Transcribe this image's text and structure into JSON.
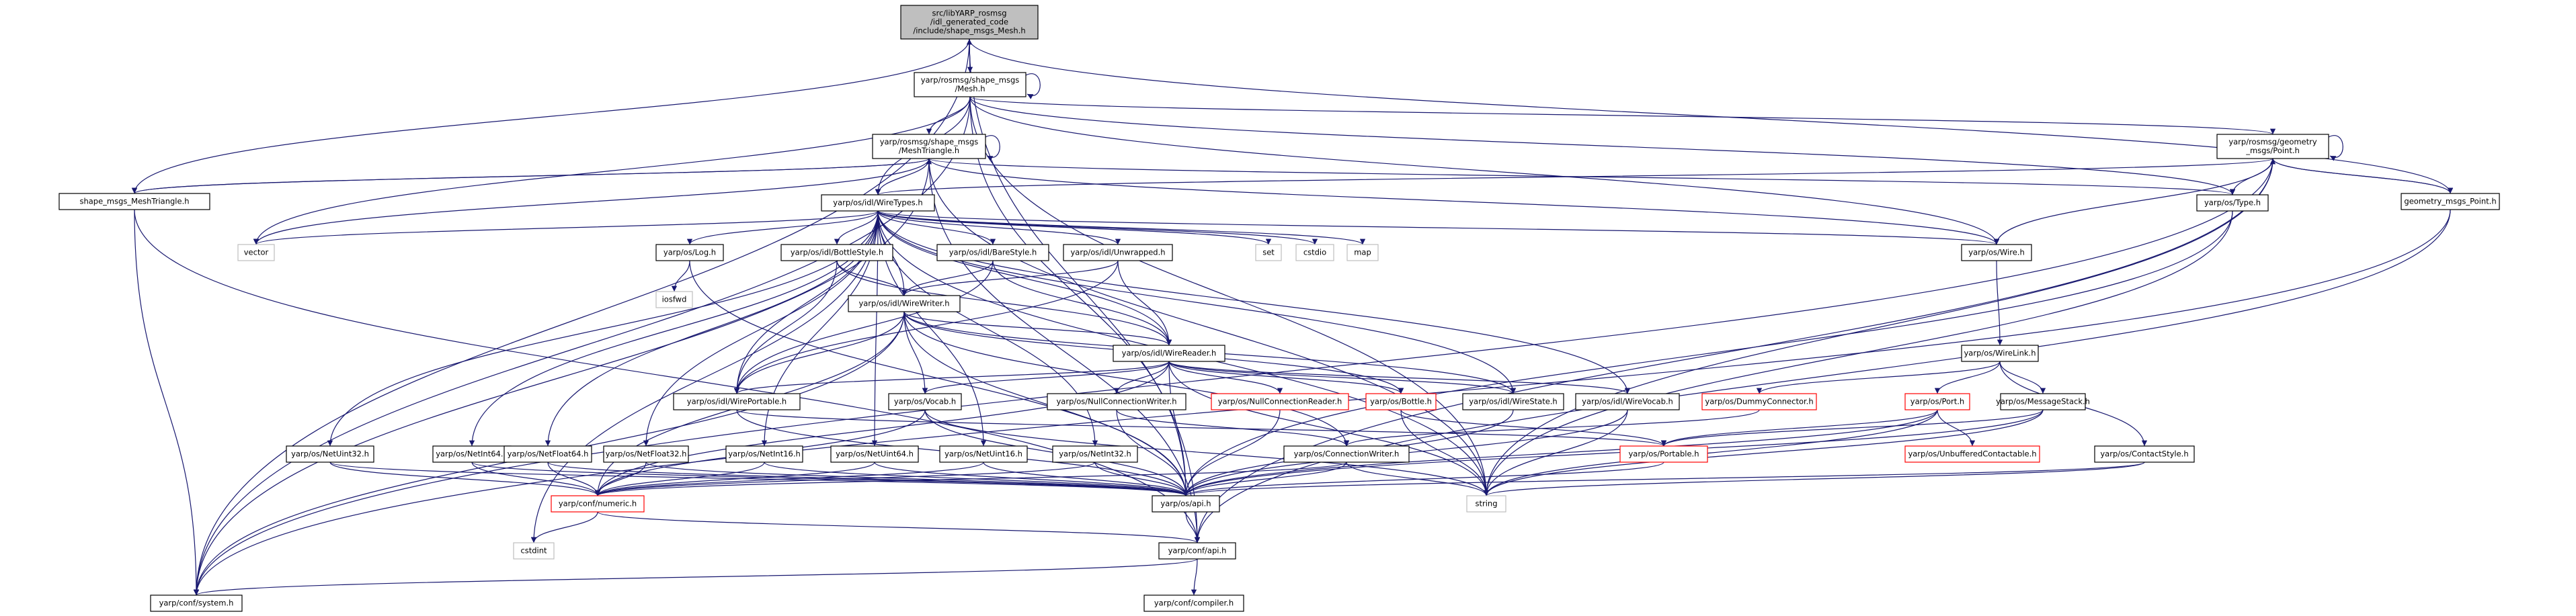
{
  "colors": {
    "edge": "#191970",
    "node_border": "#000000",
    "node_fill": "#ffffff",
    "root_fill": "#bfbfbf",
    "root_border": "#000000",
    "missing_border": "#ff0000",
    "plain_border": "#bfbfbf"
  },
  "nodes": [
    {
      "id": "root",
      "lines": [
        "src/libYARP_rosmsg",
        "/idl_generated_code",
        "/include/shape_msgs_Mesh.h"
      ],
      "style": "root"
    },
    {
      "id": "mesh",
      "lines": [
        "yarp/rosmsg/shape_msgs",
        "/Mesh.h"
      ],
      "style": "normal"
    },
    {
      "id": "meshtri",
      "lines": [
        "yarp/rosmsg/shape_msgs",
        "/MeshTriangle.h"
      ],
      "style": "normal"
    },
    {
      "id": "geopoint",
      "lines": [
        "yarp/rosmsg/geometry",
        "_msgs/Point.h"
      ],
      "style": "normal"
    },
    {
      "id": "smt",
      "lines": [
        "shape_msgs_MeshTriangle.h"
      ],
      "style": "normal"
    },
    {
      "id": "gmp",
      "lines": [
        "geometry_msgs_Point.h"
      ],
      "style": "normal"
    },
    {
      "id": "wiretypes",
      "lines": [
        "yarp/os/idl/WireTypes.h"
      ],
      "style": "normal"
    },
    {
      "id": "typeh",
      "lines": [
        "yarp/os/Type.h"
      ],
      "style": "normal"
    },
    {
      "id": "vector",
      "lines": [
        "vector"
      ],
      "style": "plain"
    },
    {
      "id": "set",
      "lines": [
        "set"
      ],
      "style": "plain"
    },
    {
      "id": "cstdio",
      "lines": [
        "cstdio"
      ],
      "style": "plain"
    },
    {
      "id": "map",
      "lines": [
        "map"
      ],
      "style": "plain"
    },
    {
      "id": "wire",
      "lines": [
        "yarp/os/Wire.h"
      ],
      "style": "normal"
    },
    {
      "id": "log",
      "lines": [
        "yarp/os/Log.h"
      ],
      "style": "normal"
    },
    {
      "id": "iosfwd",
      "lines": [
        "iosfwd"
      ],
      "style": "plain"
    },
    {
      "id": "bottlestyle",
      "lines": [
        "yarp/os/idl/BottleStyle.h"
      ],
      "style": "normal"
    },
    {
      "id": "barestyle",
      "lines": [
        "yarp/os/idl/BareStyle.h"
      ],
      "style": "normal"
    },
    {
      "id": "unwrapped",
      "lines": [
        "yarp/os/idl/Unwrapped.h"
      ],
      "style": "normal"
    },
    {
      "id": "wirewriter",
      "lines": [
        "yarp/os/idl/WireWriter.h"
      ],
      "style": "normal"
    },
    {
      "id": "wirereader",
      "lines": [
        "yarp/os/idl/WireReader.h"
      ],
      "style": "normal"
    },
    {
      "id": "wirelink",
      "lines": [
        "yarp/os/WireLink.h"
      ],
      "style": "normal"
    },
    {
      "id": "dummyconn",
      "lines": [
        "yarp/os/DummyConnector.h"
      ],
      "style": "missing"
    },
    {
      "id": "port",
      "lines": [
        "yarp/os/Port.h"
      ],
      "style": "missing"
    },
    {
      "id": "msgstack",
      "lines": [
        "yarp/os/MessageStack.h"
      ],
      "style": "normal"
    },
    {
      "id": "wireportable",
      "lines": [
        "yarp/os/idl/WirePortable.h"
      ],
      "style": "normal"
    },
    {
      "id": "vocab",
      "lines": [
        "yarp/os/Vocab.h"
      ],
      "style": "normal"
    },
    {
      "id": "nullconnwriter",
      "lines": [
        "yarp/os/NullConnectionWriter.h"
      ],
      "style": "normal"
    },
    {
      "id": "nullconnreader",
      "lines": [
        "yarp/os/NullConnectionReader.h"
      ],
      "style": "missing"
    },
    {
      "id": "bottle",
      "lines": [
        "yarp/os/Bottle.h"
      ],
      "style": "missing"
    },
    {
      "id": "wirestate",
      "lines": [
        "yarp/os/idl/WireState.h"
      ],
      "style": "normal"
    },
    {
      "id": "wirevocab",
      "lines": [
        "yarp/os/idl/WireVocab.h"
      ],
      "style": "normal"
    },
    {
      "id": "portable",
      "lines": [
        "yarp/os/Portable.h"
      ],
      "style": "missing"
    },
    {
      "id": "unbuffered",
      "lines": [
        "yarp/os/UnbufferedContactable.h"
      ],
      "style": "missing"
    },
    {
      "id": "contactstyle",
      "lines": [
        "yarp/os/ContactStyle.h"
      ],
      "style": "normal"
    },
    {
      "id": "netuint32",
      "lines": [
        "yarp/os/NetUint32.h"
      ],
      "style": "normal"
    },
    {
      "id": "netint64",
      "lines": [
        "yarp/os/NetInt64.h"
      ],
      "style": "normal"
    },
    {
      "id": "netfloat64",
      "lines": [
        "yarp/os/NetFloat64.h"
      ],
      "style": "normal"
    },
    {
      "id": "netfloat32",
      "lines": [
        "yarp/os/NetFloat32.h"
      ],
      "style": "normal"
    },
    {
      "id": "netint16",
      "lines": [
        "yarp/os/NetInt16.h"
      ],
      "style": "normal"
    },
    {
      "id": "netuint64",
      "lines": [
        "yarp/os/NetUint64.h"
      ],
      "style": "normal"
    },
    {
      "id": "netuint16",
      "lines": [
        "yarp/os/NetUint16.h"
      ],
      "style": "normal"
    },
    {
      "id": "netint32",
      "lines": [
        "yarp/os/NetInt32.h"
      ],
      "style": "normal"
    },
    {
      "id": "connwriter",
      "lines": [
        "yarp/os/ConnectionWriter.h"
      ],
      "style": "normal"
    },
    {
      "id": "string",
      "lines": [
        "string"
      ],
      "style": "plain"
    },
    {
      "id": "numeric",
      "lines": [
        "yarp/conf/numeric.h"
      ],
      "style": "missing"
    },
    {
      "id": "apih",
      "lines": [
        "yarp/os/api.h"
      ],
      "style": "normal"
    },
    {
      "id": "cstdint",
      "lines": [
        "cstdint"
      ],
      "style": "plain"
    },
    {
      "id": "confapi",
      "lines": [
        "yarp/conf/api.h"
      ],
      "style": "normal"
    },
    {
      "id": "system",
      "lines": [
        "yarp/conf/system.h"
      ],
      "style": "normal"
    },
    {
      "id": "compiler",
      "lines": [
        "yarp/conf/compiler.h"
      ],
      "style": "normal"
    }
  ],
  "edges": [
    [
      "root",
      "mesh"
    ],
    [
      "root",
      "smt"
    ],
    [
      "root",
      "system"
    ],
    [
      "root",
      "confapi"
    ],
    [
      "root",
      "gmp"
    ],
    [
      "mesh",
      "mesh"
    ],
    [
      "mesh",
      "meshtri"
    ],
    [
      "mesh",
      "geopoint"
    ],
    [
      "mesh",
      "wiretypes"
    ],
    [
      "mesh",
      "typeh"
    ],
    [
      "mesh",
      "vector"
    ],
    [
      "mesh",
      "wire"
    ],
    [
      "mesh",
      "system"
    ],
    [
      "mesh",
      "apih"
    ],
    [
      "mesh",
      "string"
    ],
    [
      "mesh",
      "root"
    ],
    [
      "meshtri",
      "meshtri"
    ],
    [
      "meshtri",
      "wiretypes"
    ],
    [
      "meshtri",
      "typeh"
    ],
    [
      "meshtri",
      "vector"
    ],
    [
      "meshtri",
      "wire"
    ],
    [
      "meshtri",
      "system"
    ],
    [
      "meshtri",
      "smt"
    ],
    [
      "meshtri",
      "string"
    ],
    [
      "meshtri",
      "confapi"
    ],
    [
      "geopoint",
      "geopoint"
    ],
    [
      "geopoint",
      "wiretypes"
    ],
    [
      "geopoint",
      "typeh"
    ],
    [
      "geopoint",
      "wire"
    ],
    [
      "geopoint",
      "gmp"
    ],
    [
      "geopoint",
      "string"
    ],
    [
      "geopoint",
      "confapi"
    ],
    [
      "geopoint",
      "system"
    ],
    [
      "smt",
      "meshtri"
    ],
    [
      "smt",
      "system"
    ],
    [
      "smt",
      "confapi"
    ],
    [
      "gmp",
      "geopoint"
    ],
    [
      "gmp",
      "system"
    ],
    [
      "gmp",
      "confapi"
    ],
    [
      "wiretypes",
      "vector"
    ],
    [
      "wiretypes",
      "set"
    ],
    [
      "wiretypes",
      "cstdio"
    ],
    [
      "wiretypes",
      "map"
    ],
    [
      "wiretypes",
      "wire"
    ],
    [
      "wiretypes",
      "log"
    ],
    [
      "wiretypes",
      "bottlestyle"
    ],
    [
      "wiretypes",
      "barestyle"
    ],
    [
      "wiretypes",
      "unwrapped"
    ],
    [
      "wiretypes",
      "wirewriter"
    ],
    [
      "wiretypes",
      "wirereader"
    ],
    [
      "wiretypes",
      "wireportable"
    ],
    [
      "wiretypes",
      "wirestate"
    ],
    [
      "wiretypes",
      "wirevocab"
    ],
    [
      "wiretypes",
      "netuint32"
    ],
    [
      "wiretypes",
      "netint64"
    ],
    [
      "wiretypes",
      "netfloat64"
    ],
    [
      "wiretypes",
      "netfloat32"
    ],
    [
      "wiretypes",
      "netint16"
    ],
    [
      "wiretypes",
      "netuint64"
    ],
    [
      "wiretypes",
      "netuint16"
    ],
    [
      "wiretypes",
      "netint32"
    ],
    [
      "wiretypes",
      "cstdint"
    ],
    [
      "wiretypes",
      "string"
    ],
    [
      "typeh",
      "apih"
    ],
    [
      "typeh",
      "string"
    ],
    [
      "wire",
      "wirelink"
    ],
    [
      "log",
      "iosfwd"
    ],
    [
      "log",
      "apih"
    ],
    [
      "bottlestyle",
      "wireportable"
    ],
    [
      "bottlestyle",
      "wirewriter"
    ],
    [
      "bottlestyle",
      "wirereader"
    ],
    [
      "barestyle",
      "wireportable"
    ],
    [
      "barestyle",
      "wirewriter"
    ],
    [
      "barestyle",
      "wirereader"
    ],
    [
      "unwrapped",
      "wireportable"
    ],
    [
      "unwrapped",
      "wirewriter"
    ],
    [
      "unwrapped",
      "wirereader"
    ],
    [
      "wirewriter",
      "wirereader"
    ],
    [
      "wirewriter",
      "wireportable"
    ],
    [
      "wirewriter",
      "vocab"
    ],
    [
      "wirewriter",
      "bottle"
    ],
    [
      "wirewriter",
      "wirestate"
    ],
    [
      "wirewriter",
      "numeric"
    ],
    [
      "wirewriter",
      "apih"
    ],
    [
      "wirewriter",
      "connwriter"
    ],
    [
      "wirewriter",
      "system"
    ],
    [
      "wirereader",
      "wireportable"
    ],
    [
      "wirereader",
      "vocab"
    ],
    [
      "wirereader",
      "nullconnwriter"
    ],
    [
      "wirereader",
      "nullconnreader"
    ],
    [
      "wirereader",
      "bottle"
    ],
    [
      "wirereader",
      "wirestate"
    ],
    [
      "wirereader",
      "wirevocab"
    ],
    [
      "wirereader",
      "numeric"
    ],
    [
      "wirereader",
      "apih"
    ],
    [
      "wirereader",
      "string"
    ],
    [
      "wirelink",
      "dummyconn"
    ],
    [
      "wirelink",
      "port"
    ],
    [
      "wirelink",
      "msgstack"
    ],
    [
      "wirelink",
      "contactstyle"
    ],
    [
      "dummyconn",
      "connwriter"
    ],
    [
      "port",
      "unbuffered"
    ],
    [
      "port",
      "portable"
    ],
    [
      "port",
      "apih"
    ],
    [
      "port",
      "string"
    ],
    [
      "msgstack",
      "portable"
    ],
    [
      "msgstack",
      "apih"
    ],
    [
      "msgstack",
      "string"
    ],
    [
      "contactstyle",
      "apih"
    ],
    [
      "contactstyle",
      "string"
    ],
    [
      "wireportable",
      "portable"
    ],
    [
      "wireportable",
      "apih"
    ],
    [
      "vocab",
      "apih"
    ],
    [
      "vocab",
      "string"
    ],
    [
      "vocab",
      "numeric"
    ],
    [
      "nullconnwriter",
      "connwriter"
    ],
    [
      "nullconnwriter",
      "apih"
    ],
    [
      "nullconnreader",
      "apih"
    ],
    [
      "bottle",
      "portable"
    ],
    [
      "bottle",
      "string"
    ],
    [
      "wirestate",
      "apih"
    ],
    [
      "wirevocab",
      "apih"
    ],
    [
      "wirevocab",
      "string"
    ],
    [
      "portable",
      "apih"
    ],
    [
      "netuint32",
      "numeric"
    ],
    [
      "netuint32",
      "apih"
    ],
    [
      "netint64",
      "numeric"
    ],
    [
      "netint64",
      "apih"
    ],
    [
      "netfloat64",
      "numeric"
    ],
    [
      "netfloat64",
      "apih"
    ],
    [
      "netfloat32",
      "numeric"
    ],
    [
      "netfloat32",
      "apih"
    ],
    [
      "netint16",
      "numeric"
    ],
    [
      "netint16",
      "apih"
    ],
    [
      "netuint64",
      "numeric"
    ],
    [
      "netuint64",
      "apih"
    ],
    [
      "netuint16",
      "numeric"
    ],
    [
      "netuint16",
      "apih"
    ],
    [
      "netint32",
      "numeric"
    ],
    [
      "netint32",
      "apih"
    ],
    [
      "connwriter",
      "apih"
    ],
    [
      "connwriter",
      "string"
    ],
    [
      "connwriter",
      "numeric"
    ],
    [
      "numeric",
      "cstdint"
    ],
    [
      "numeric",
      "confapi"
    ],
    [
      "apih",
      "confapi"
    ],
    [
      "confapi",
      "system"
    ],
    [
      "confapi",
      "compiler"
    ]
  ]
}
